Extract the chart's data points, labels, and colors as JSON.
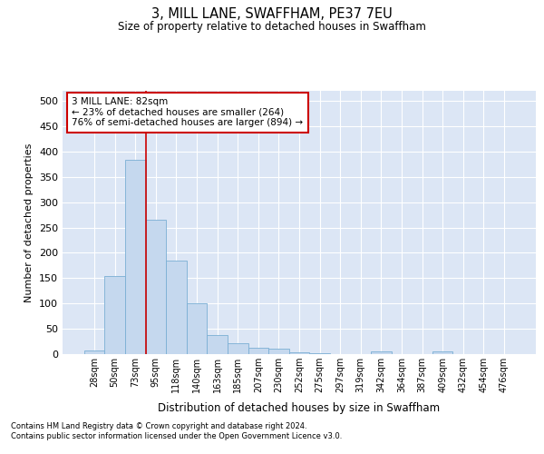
{
  "title": "3, MILL LANE, SWAFFHAM, PE37 7EU",
  "subtitle": "Size of property relative to detached houses in Swaffham",
  "xlabel": "Distribution of detached houses by size in Swaffham",
  "ylabel": "Number of detached properties",
  "categories": [
    "28sqm",
    "50sqm",
    "73sqm",
    "95sqm",
    "118sqm",
    "140sqm",
    "163sqm",
    "185sqm",
    "207sqm",
    "230sqm",
    "252sqm",
    "275sqm",
    "297sqm",
    "319sqm",
    "342sqm",
    "364sqm",
    "387sqm",
    "409sqm",
    "432sqm",
    "454sqm",
    "476sqm"
  ],
  "values": [
    7,
    155,
    383,
    265,
    185,
    101,
    37,
    21,
    12,
    10,
    4,
    1,
    0,
    0,
    5,
    0,
    0,
    5,
    0,
    0,
    0
  ],
  "bar_color": "#c5d8ee",
  "bar_edge_color": "#7aafd4",
  "background_color": "#dce6f5",
  "grid_color": "#ffffff",
  "annotation_box_color": "#cc0000",
  "property_line_color": "#cc0000",
  "property_line_index": 2,
  "annotation_line1": "3 MILL LANE: 82sqm",
  "annotation_line2": "← 23% of detached houses are smaller (264)",
  "annotation_line3": "76% of semi-detached houses are larger (894) →",
  "footer_line1": "Contains HM Land Registry data © Crown copyright and database right 2024.",
  "footer_line2": "Contains public sector information licensed under the Open Government Licence v3.0.",
  "ylim": [
    0,
    520
  ],
  "yticks": [
    0,
    50,
    100,
    150,
    200,
    250,
    300,
    350,
    400,
    450,
    500
  ]
}
